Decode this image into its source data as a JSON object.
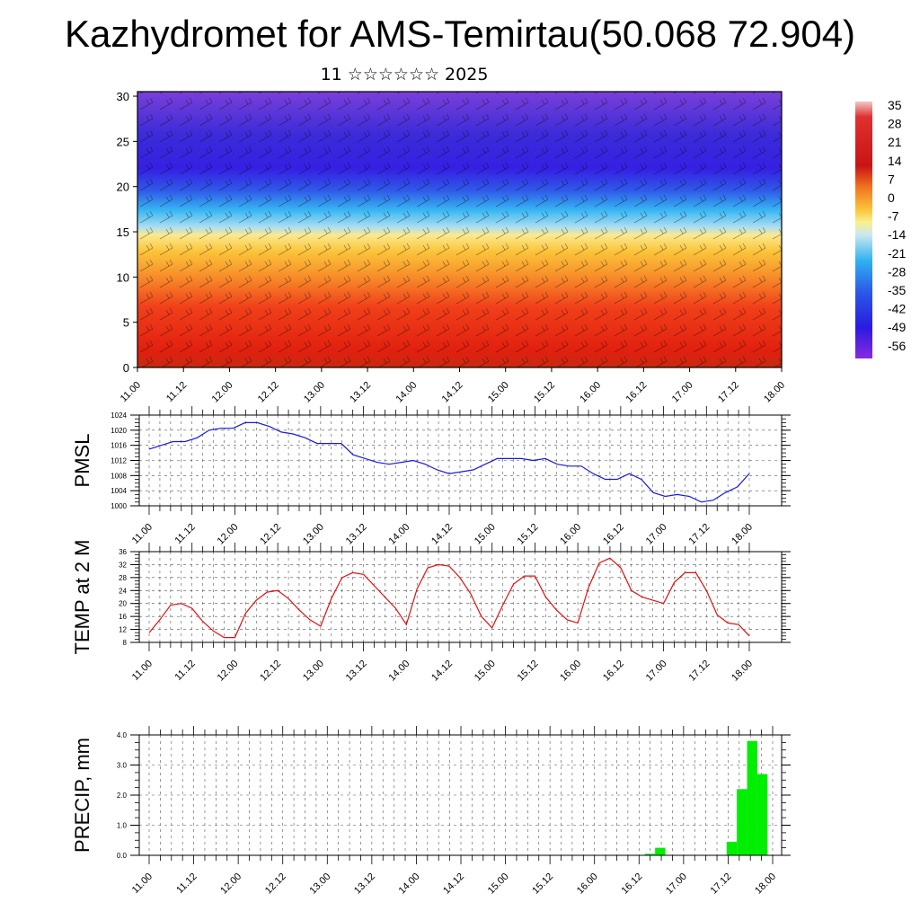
{
  "title": "Kazhydromet for AMS-Temirtau(50.068 72.904)",
  "subtitle": "11 ☆☆☆☆☆☆ 2025",
  "colors": {
    "pmsl_line": "#1a1adc",
    "temp_line": "#e01010",
    "precip_bar": "#00ee00"
  },
  "colorbar": {
    "labels": [
      "35",
      "28",
      "21",
      "14",
      "7",
      "0",
      "-7",
      "-14",
      "-21",
      "-28",
      "-35",
      "-42",
      "-49",
      "-56"
    ]
  },
  "chart_data": [
    {
      "type": "heatmap",
      "name": "cross-section",
      "x_tick_labels": [
        "11.00",
        "11.12",
        "12.00",
        "12.12",
        "13.00",
        "13.12",
        "14.00",
        "14.12",
        "15.00",
        "15.12",
        "16.00",
        "16.12",
        "17.00",
        "17.12",
        "18.00"
      ],
      "y_tick_labels": [
        "0",
        "5",
        "10",
        "15",
        "20",
        "25",
        "30"
      ],
      "ylim": [
        0,
        30.5
      ],
      "colorbar_range": [
        -60,
        38
      ]
    },
    {
      "type": "line",
      "ylabel": "PMSL",
      "ylim": [
        1000,
        1024
      ],
      "y_tick_labels": [
        "1000",
        "1004",
        "1008",
        "1012",
        "1016",
        "1020",
        "1024"
      ],
      "x_tick_labels": [
        "11.00",
        "11.12",
        "12.00",
        "12.12",
        "13.00",
        "13.12",
        "14.00",
        "14.12",
        "15.00",
        "15.12",
        "16.00",
        "16.12",
        "17.00",
        "17.12",
        "18.00"
      ],
      "series": [
        {
          "values": [
            1015,
            1016,
            1017,
            1017,
            1018,
            1020,
            1020.5,
            1020.5,
            1022,
            1022,
            1021,
            1019.5,
            1019,
            1018,
            1016.5,
            1016.5,
            1016.5,
            1013.5,
            1012.5,
            1011.5,
            1011,
            1011.5,
            1012,
            1011,
            1009.5,
            1008.5,
            1009,
            1009.5,
            1011,
            1012.5,
            1012.5,
            1012.5,
            1012,
            1012.5,
            1011,
            1010.5,
            1010.5,
            1008.5,
            1007,
            1007,
            1008.5,
            1007,
            1003.5,
            1002.5,
            1003,
            1002.5,
            1001,
            1001.5,
            1003.5,
            1005,
            1008.5
          ]
        }
      ]
    },
    {
      "type": "line",
      "ylabel": "TEMP at 2 M",
      "ylim": [
        8,
        36
      ],
      "y_tick_labels": [
        "8",
        "12",
        "16",
        "20",
        "24",
        "28",
        "32",
        "36"
      ],
      "x_tick_labels": [
        "11.00",
        "11.12",
        "12.00",
        "12.12",
        "13.00",
        "13.12",
        "14.00",
        "14.12",
        "15.00",
        "15.12",
        "16.00",
        "16.12",
        "17.00",
        "17.12",
        "18.00"
      ],
      "series": [
        {
          "values": [
            11,
            15,
            19.5,
            20,
            18.5,
            14.5,
            11.5,
            9.5,
            9.5,
            17,
            21,
            23.5,
            24,
            21.5,
            18,
            15,
            13,
            21.5,
            28,
            29.5,
            29,
            25.5,
            22,
            18.5,
            13.5,
            24.5,
            31,
            32,
            31.5,
            28,
            23,
            16,
            12.5,
            19.5,
            26,
            28.5,
            28.5,
            22,
            18,
            15,
            14,
            25,
            32.5,
            34,
            31,
            24,
            22,
            21,
            20,
            26.5,
            29.5,
            29.5,
            24,
            16.5,
            14,
            13.5,
            10
          ]
        }
      ]
    },
    {
      "type": "bar",
      "ylabel": "PRECIP, mm",
      "ylim": [
        0,
        4
      ],
      "y_tick_labels": [
        "0.0",
        "1.0",
        "2.0",
        "3.0",
        "4.0"
      ],
      "x_tick_labels": [
        "11.00",
        "11.12",
        "12.00",
        "12.12",
        "13.00",
        "13.12",
        "14.00",
        "14.12",
        "15.00",
        "15.12",
        "16.00",
        "16.12",
        "17.00",
        "17.12",
        "18.00"
      ],
      "values": [
        0,
        0,
        0,
        0,
        0,
        0,
        0,
        0,
        0,
        0,
        0,
        0,
        0,
        0,
        0,
        0,
        0,
        0,
        0,
        0,
        0,
        0,
        0,
        0,
        0,
        0,
        0,
        0,
        0,
        0,
        0,
        0,
        0,
        0,
        0,
        0,
        0,
        0,
        0,
        0,
        0,
        0,
        0,
        0,
        0,
        0,
        0,
        0,
        0,
        0.05,
        0.25,
        0,
        0,
        0,
        0,
        0,
        0,
        0.45,
        2.2,
        3.8,
        2.7,
        0
      ]
    }
  ]
}
